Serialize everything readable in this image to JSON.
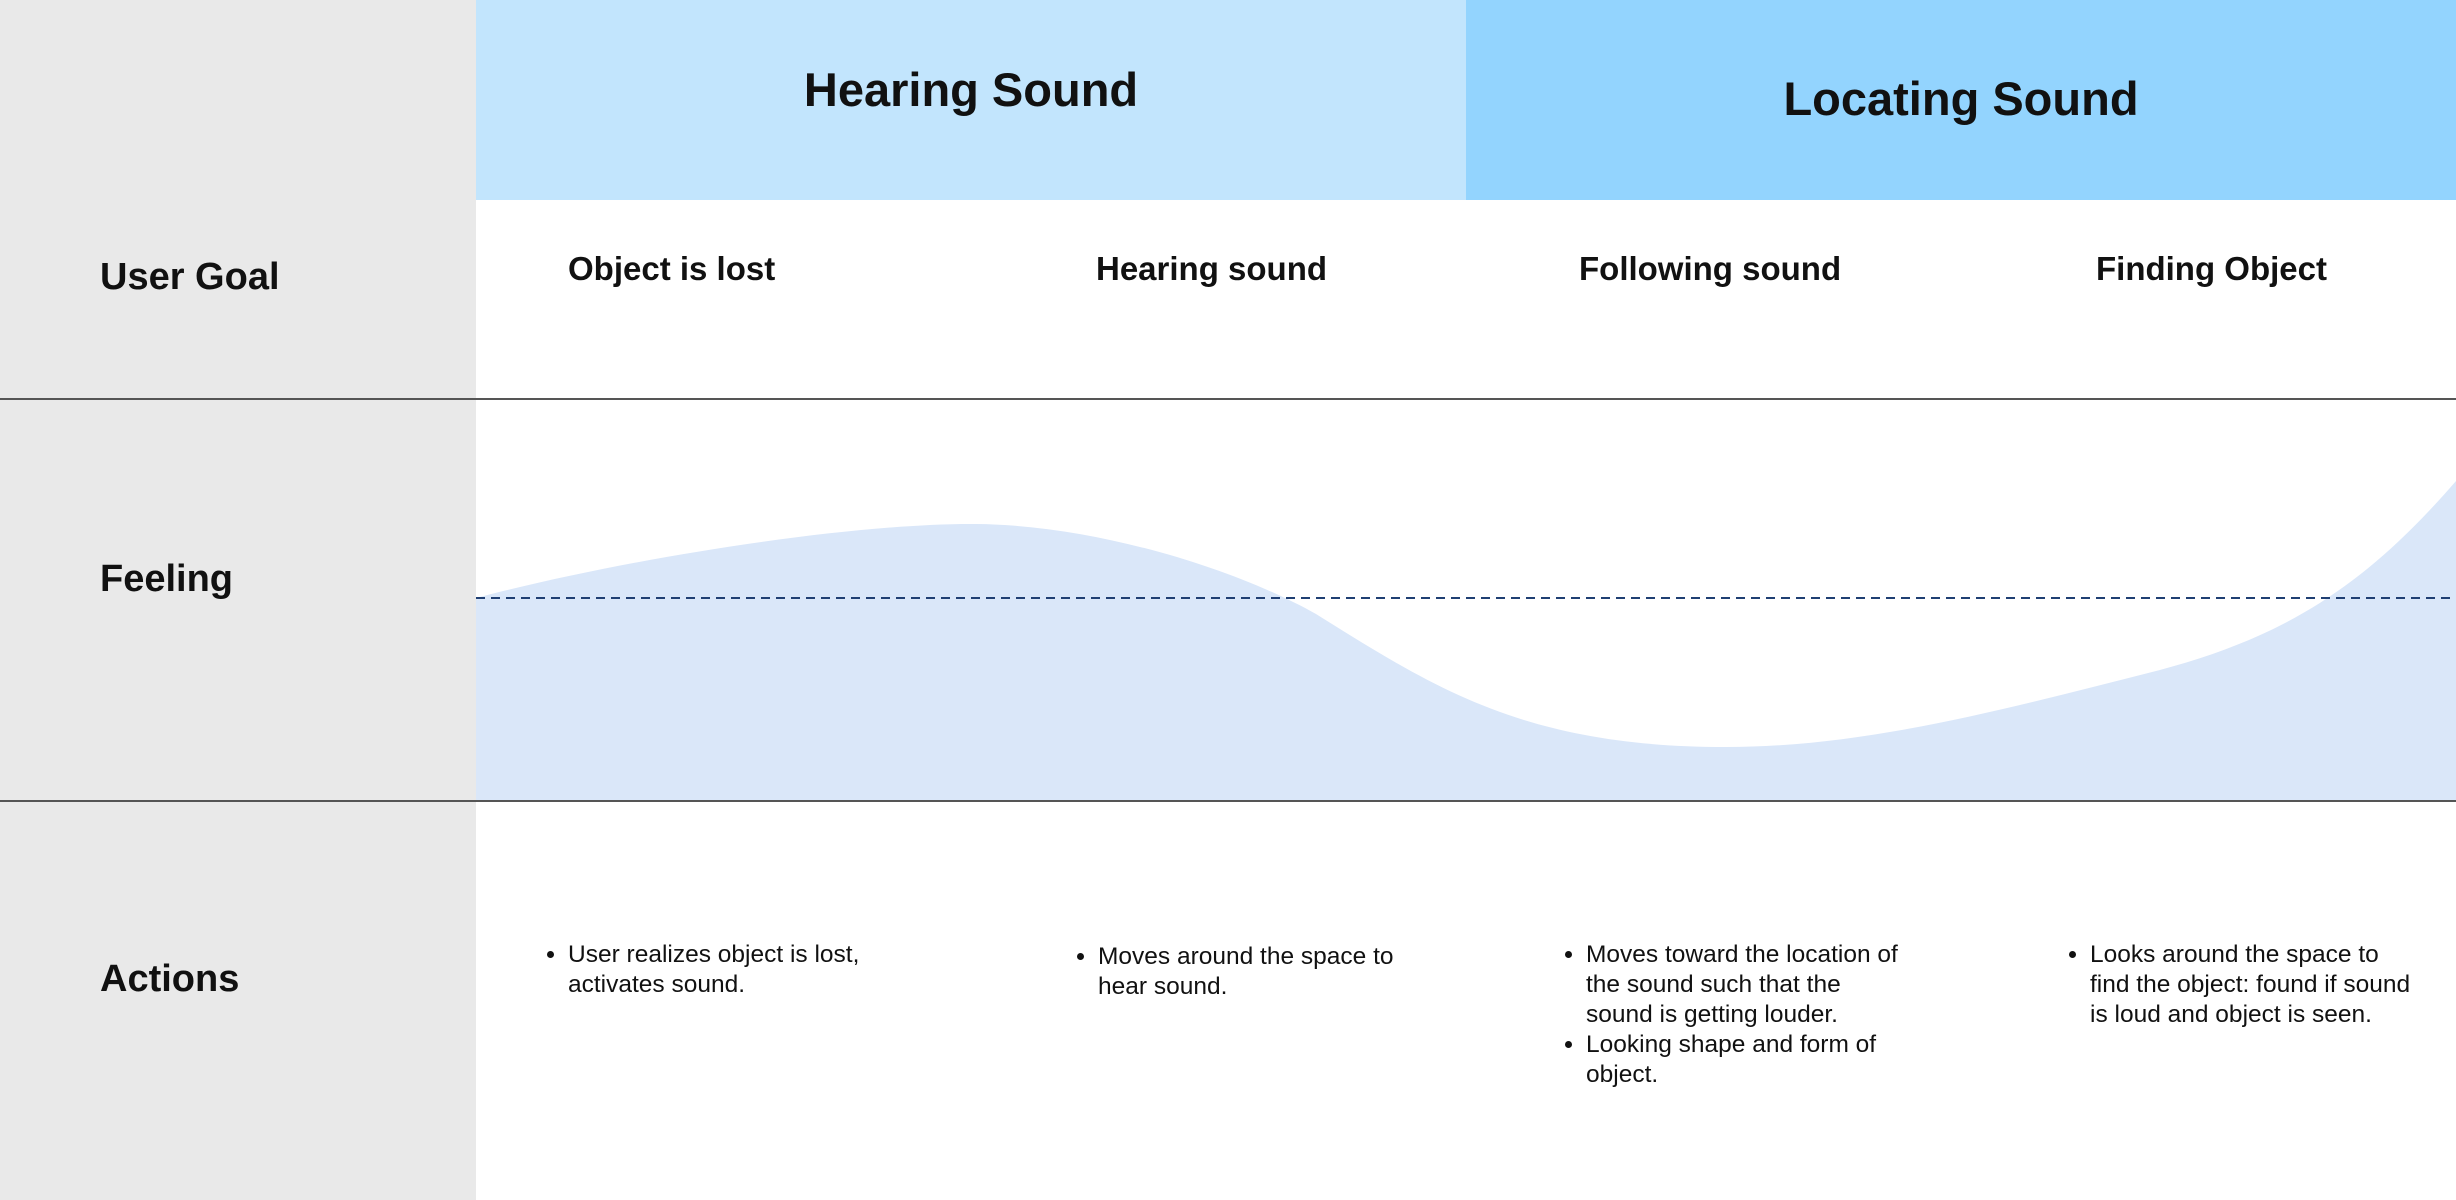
{
  "phases": [
    {
      "label": "Hearing Sound",
      "color": "#c2e5fd"
    },
    {
      "label": "Locating Sound",
      "color": "#93d4fe"
    }
  ],
  "rows": {
    "user_goal": "User Goal",
    "feeling": "Feeling",
    "actions": "Actions"
  },
  "goals": [
    "Object is lost",
    "Hearing sound",
    "Following sound",
    "Finding Object"
  ],
  "actions": [
    [
      "User realizes object is lost, activates sound."
    ],
    [
      "Moves around the space to hear sound."
    ],
    [
      "Moves toward the location of the sound such that the sound is getting louder.",
      "Looking shape and form of object."
    ],
    [
      "Looks around the space to find the object: found if sound is loud and object is seen."
    ]
  ],
  "colors": {
    "sidebar": "#e9e9e9",
    "feeling_fill": "#dae7f9",
    "baseline": "#1f3f73",
    "divider": "#555555"
  }
}
